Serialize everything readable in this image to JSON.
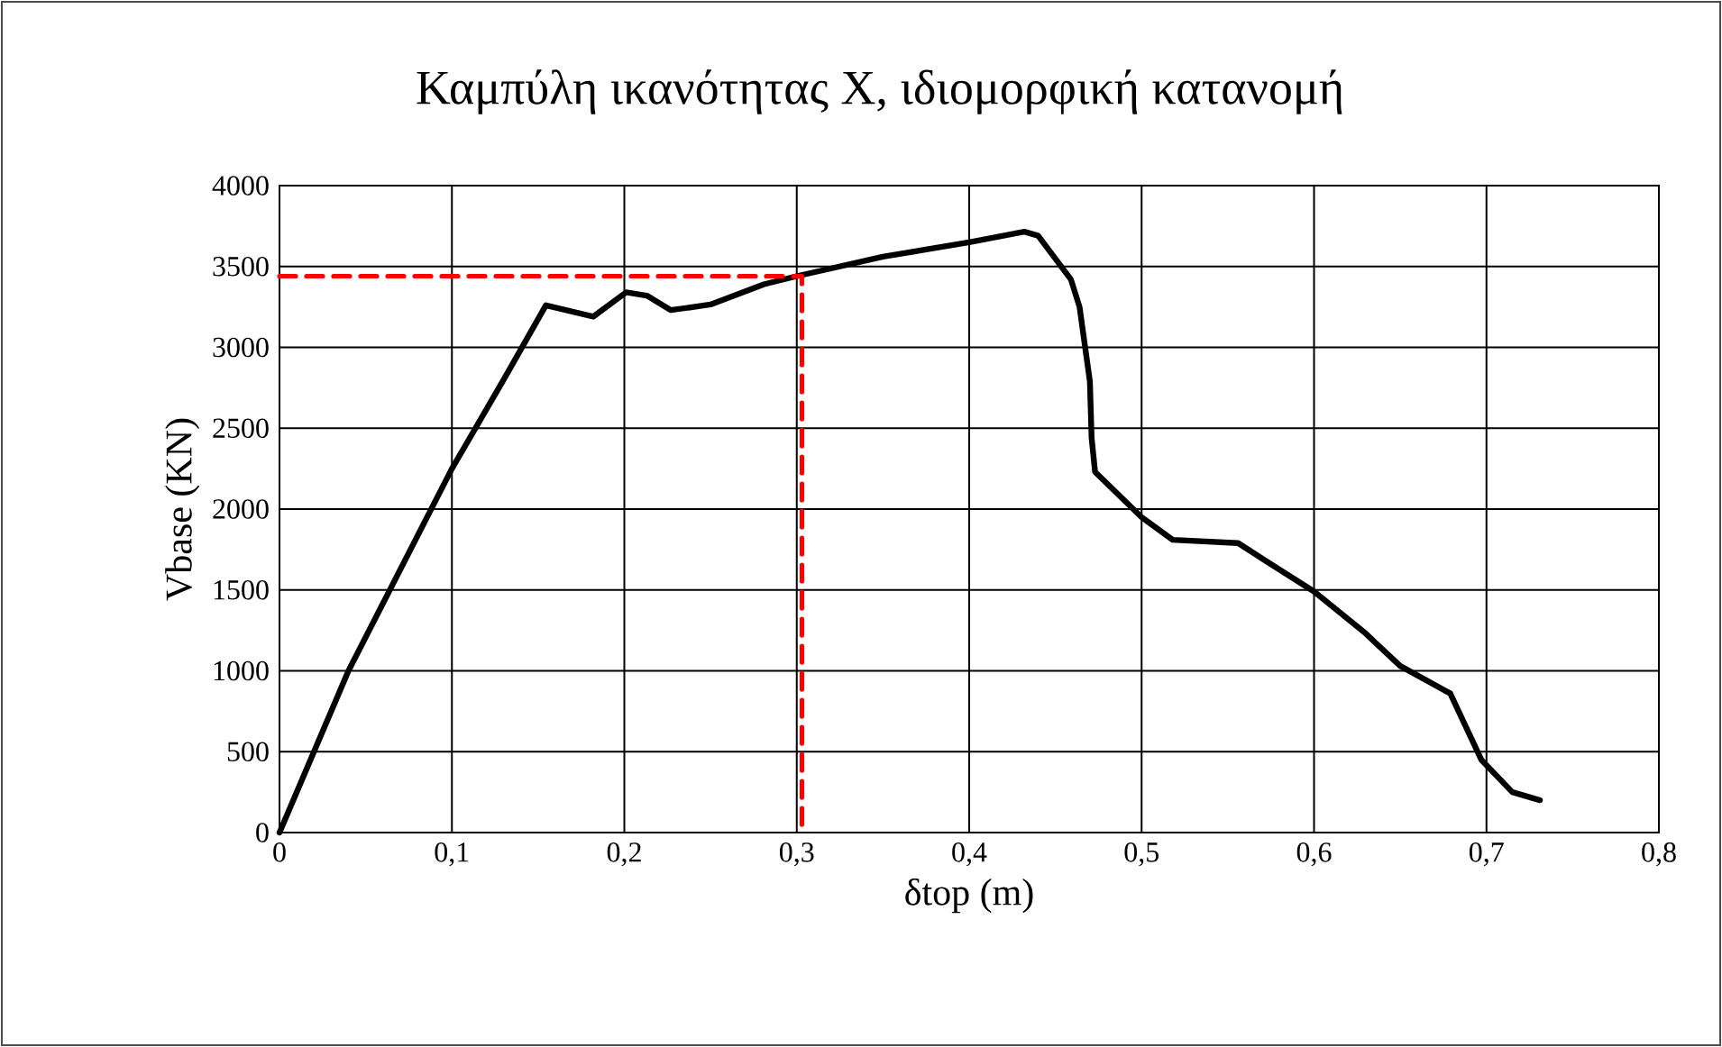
{
  "chart_data": {
    "type": "line",
    "title": "Καμπύλη ικανότητας X, ιδιομορφική κατανομή",
    "xlabel": "δtop (m)",
    "ylabel": "Vbase (KN)",
    "xlim": [
      0,
      0.8
    ],
    "ylim": [
      0,
      4000
    ],
    "xticks": [
      0,
      {
        "value": 0.1,
        "label": "0,1"
      },
      {
        "value": 0.2,
        "label": "0,2"
      },
      {
        "value": 0.3,
        "label": "0,3"
      },
      {
        "value": 0.4,
        "label": "0,4"
      },
      {
        "value": 0.5,
        "label": "0,5"
      },
      {
        "value": 0.6,
        "label": "0,6"
      },
      {
        "value": 0.7,
        "label": "0,7"
      },
      {
        "value": 0.8,
        "label": "0,8"
      }
    ],
    "yticks": [
      0,
      500,
      1000,
      1500,
      2000,
      2500,
      3000,
      3500,
      4000
    ],
    "grid": true,
    "marker": "none",
    "series": [
      {
        "color": "#000000",
        "line_style": "solid",
        "x": [
          0,
          0.04,
          0.1,
          0.13,
          0.1545,
          0.182,
          0.201,
          0.213,
          0.227,
          0.25,
          0.281,
          0.3,
          0.35,
          0.4,
          0.432,
          0.44,
          0.459,
          0.464,
          0.47,
          0.471,
          0.473,
          0.5,
          0.518,
          0.556,
          0.572,
          0.6,
          0.629,
          0.65,
          0.679,
          0.697,
          0.715,
          0.731
        ],
        "values": [
          0,
          1000,
          2250,
          2800,
          3260,
          3190,
          3340,
          3320,
          3230,
          3265,
          3390,
          3440,
          3560,
          3650,
          3715,
          3690,
          3420,
          3250,
          2790,
          2440,
          2230,
          1950,
          1810,
          1790,
          1680,
          1490,
          1240,
          1030,
          860,
          450,
          250,
          200
        ]
      },
      {
        "color": "#ff0000",
        "line_style": "dashed",
        "x": [
          0,
          0.303,
          0.303
        ],
        "values": [
          3440,
          3440,
          0
        ]
      }
    ]
  }
}
